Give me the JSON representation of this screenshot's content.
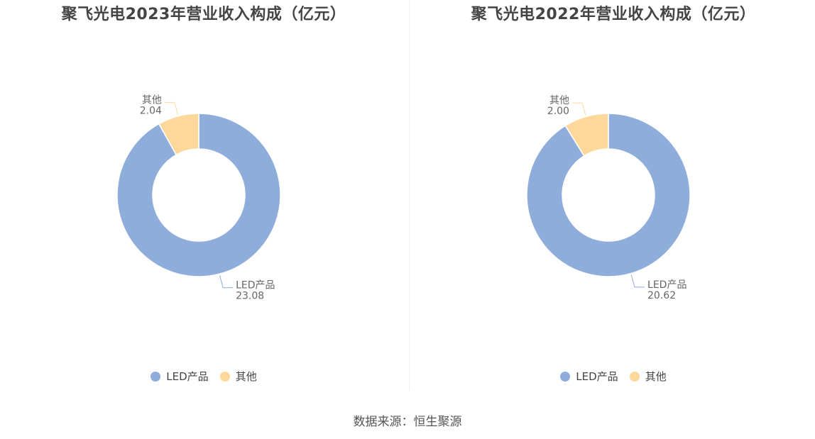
{
  "colors": {
    "led": "#8eadda",
    "other": "#fdd89a"
  },
  "charts": [
    {
      "title": "聚飞光电2023年营业收入构成（亿元）"
    },
    {
      "title": "聚飞光电2022年营业收入构成（亿元）"
    }
  ],
  "legend": {
    "led": "LED产品",
    "other": "其他"
  },
  "source": "数据来源：恒生聚源",
  "chart_data": [
    {
      "type": "pie",
      "title": "聚飞光电2023年营业收入构成（亿元）",
      "labels": [
        "LED产品",
        "其他"
      ],
      "values": [
        23.08,
        2.04
      ],
      "value_labels": [
        "23.08",
        "2.04"
      ],
      "legend": "bottom"
    },
    {
      "type": "pie",
      "title": "聚飞光电2022年营业收入构成（亿元）",
      "labels": [
        "LED产品",
        "其他"
      ],
      "values": [
        20.62,
        2.0
      ],
      "value_labels": [
        "20.62",
        "2.00"
      ],
      "legend": "bottom"
    }
  ]
}
